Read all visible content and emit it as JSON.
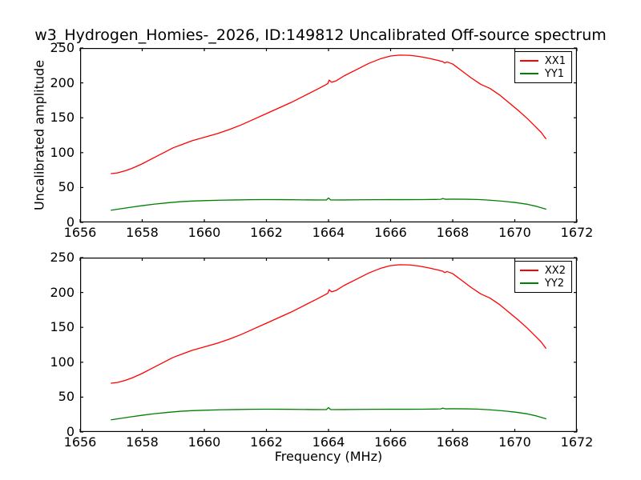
{
  "title": "w3_Hydrogen_Homies-_2026, ID:149812 Uncalibrated Off-source spectrum",
  "colors": {
    "xx_line": "#ff0000",
    "yy_line": "#008000",
    "frame": "#000000",
    "background": "#ffffff"
  },
  "chart_data": [
    {
      "type": "line",
      "title": "",
      "xlabel": "",
      "ylabel": "Uncalibrated amplitude",
      "xlim": [
        1656,
        1672
      ],
      "ylim": [
        0,
        250
      ],
      "xticks": [
        1656,
        1658,
        1660,
        1662,
        1664,
        1666,
        1668,
        1670,
        1672
      ],
      "yticks": [
        0,
        50,
        100,
        150,
        200,
        250
      ],
      "grid": false,
      "legend_position": "upper right",
      "legend": [
        "XX1",
        "YY1"
      ],
      "series": [
        {
          "name": "XX1",
          "color": "#ff0000",
          "points": [
            [
              1657.0,
              70
            ],
            [
              1657.2,
              71
            ],
            [
              1657.45,
              74
            ],
            [
              1657.7,
              78
            ],
            [
              1658.0,
              84
            ],
            [
              1658.3,
              91
            ],
            [
              1658.65,
              99
            ],
            [
              1659.0,
              107
            ],
            [
              1659.3,
              112
            ],
            [
              1659.6,
              117
            ],
            [
              1660.0,
              122
            ],
            [
              1660.4,
              127
            ],
            [
              1660.8,
              133
            ],
            [
              1661.2,
              140
            ],
            [
              1661.6,
              148
            ],
            [
              1662.0,
              156
            ],
            [
              1662.4,
              164
            ],
            [
              1662.8,
              172
            ],
            [
              1663.2,
              181
            ],
            [
              1663.6,
              190
            ],
            [
              1663.9,
              197
            ],
            [
              1663.98,
              199
            ],
            [
              1664.02,
              204
            ],
            [
              1664.1,
              201
            ],
            [
              1664.25,
              203
            ],
            [
              1664.5,
              210
            ],
            [
              1664.9,
              219
            ],
            [
              1665.3,
              228
            ],
            [
              1665.7,
              235
            ],
            [
              1666.0,
              238.5
            ],
            [
              1666.3,
              239.8
            ],
            [
              1666.6,
              239.5
            ],
            [
              1666.9,
              238
            ],
            [
              1667.2,
              235.5
            ],
            [
              1667.5,
              232.5
            ],
            [
              1667.68,
              230.5
            ],
            [
              1667.74,
              228.5
            ],
            [
              1667.82,
              230
            ],
            [
              1668.0,
              227
            ],
            [
              1668.3,
              217
            ],
            [
              1668.6,
              207
            ],
            [
              1668.9,
              198
            ],
            [
              1669.2,
              192
            ],
            [
              1669.5,
              183
            ],
            [
              1669.8,
              172
            ],
            [
              1670.1,
              161
            ],
            [
              1670.4,
              149
            ],
            [
              1670.65,
              138
            ],
            [
              1670.85,
              129
            ],
            [
              1671.0,
              120
            ]
          ]
        },
        {
          "name": "YY1",
          "color": "#008000",
          "points": [
            [
              1657.0,
              17.5
            ],
            [
              1657.3,
              19.5
            ],
            [
              1657.6,
              21.5
            ],
            [
              1658.0,
              24
            ],
            [
              1658.4,
              26.2
            ],
            [
              1658.8,
              28
            ],
            [
              1659.2,
              29.6
            ],
            [
              1659.6,
              30.6
            ],
            [
              1660.0,
              31.2
            ],
            [
              1660.5,
              31.8
            ],
            [
              1661.0,
              32.2
            ],
            [
              1661.5,
              32.5
            ],
            [
              1662.0,
              32.7
            ],
            [
              1662.5,
              32.6
            ],
            [
              1663.0,
              32.4
            ],
            [
              1663.5,
              32.2
            ],
            [
              1663.93,
              32.1
            ],
            [
              1664.0,
              35
            ],
            [
              1664.07,
              32.1
            ],
            [
              1664.5,
              32.2
            ],
            [
              1665.0,
              32.4
            ],
            [
              1665.5,
              32.5
            ],
            [
              1666.0,
              32.6
            ],
            [
              1666.5,
              32.6
            ],
            [
              1667.0,
              32.7
            ],
            [
              1667.4,
              32.9
            ],
            [
              1667.62,
              33.1
            ],
            [
              1667.68,
              34.3
            ],
            [
              1667.76,
              33.2
            ],
            [
              1668.0,
              33.3
            ],
            [
              1668.4,
              33.2
            ],
            [
              1668.8,
              32.8
            ],
            [
              1669.2,
              31.8
            ],
            [
              1669.6,
              30.4
            ],
            [
              1670.0,
              28.6
            ],
            [
              1670.4,
              26
            ],
            [
              1670.7,
              23
            ],
            [
              1671.0,
              19
            ]
          ]
        }
      ]
    },
    {
      "type": "line",
      "title": "",
      "xlabel": "Frequency (MHz)",
      "ylabel": "",
      "xlim": [
        1656,
        1672
      ],
      "ylim": [
        0,
        250
      ],
      "xticks": [
        1656,
        1658,
        1660,
        1662,
        1664,
        1666,
        1668,
        1670,
        1672
      ],
      "yticks": [
        0,
        50,
        100,
        150,
        200,
        250
      ],
      "grid": false,
      "legend_position": "upper right",
      "legend": [
        "XX2",
        "YY2"
      ],
      "series": [
        {
          "name": "XX2",
          "color": "#ff0000",
          "points": [
            [
              1657.0,
              70
            ],
            [
              1657.2,
              71
            ],
            [
              1657.45,
              74
            ],
            [
              1657.7,
              78
            ],
            [
              1658.0,
              84
            ],
            [
              1658.3,
              91
            ],
            [
              1658.65,
              99
            ],
            [
              1659.0,
              107
            ],
            [
              1659.3,
              112
            ],
            [
              1659.6,
              117
            ],
            [
              1660.0,
              122
            ],
            [
              1660.4,
              127
            ],
            [
              1660.8,
              133
            ],
            [
              1661.2,
              140
            ],
            [
              1661.6,
              148
            ],
            [
              1662.0,
              156
            ],
            [
              1662.4,
              164
            ],
            [
              1662.8,
              172
            ],
            [
              1663.2,
              181
            ],
            [
              1663.6,
              190
            ],
            [
              1663.9,
              197
            ],
            [
              1663.98,
              199
            ],
            [
              1664.02,
              204
            ],
            [
              1664.1,
              201
            ],
            [
              1664.25,
              203
            ],
            [
              1664.5,
              210
            ],
            [
              1664.9,
              219
            ],
            [
              1665.3,
              228
            ],
            [
              1665.7,
              235
            ],
            [
              1666.0,
              238.5
            ],
            [
              1666.3,
              239.8
            ],
            [
              1666.6,
              239.5
            ],
            [
              1666.9,
              238
            ],
            [
              1667.2,
              235.5
            ],
            [
              1667.5,
              232.5
            ],
            [
              1667.68,
              230.5
            ],
            [
              1667.74,
              228.5
            ],
            [
              1667.82,
              230
            ],
            [
              1668.0,
              227
            ],
            [
              1668.3,
              217
            ],
            [
              1668.6,
              207
            ],
            [
              1668.9,
              198
            ],
            [
              1669.2,
              192
            ],
            [
              1669.5,
              183
            ],
            [
              1669.8,
              172
            ],
            [
              1670.1,
              161
            ],
            [
              1670.4,
              149
            ],
            [
              1670.65,
              138
            ],
            [
              1670.85,
              129
            ],
            [
              1671.0,
              120
            ]
          ]
        },
        {
          "name": "YY2",
          "color": "#008000",
          "points": [
            [
              1657.0,
              17.5
            ],
            [
              1657.3,
              19.5
            ],
            [
              1657.6,
              21.5
            ],
            [
              1658.0,
              24
            ],
            [
              1658.4,
              26.2
            ],
            [
              1658.8,
              28
            ],
            [
              1659.2,
              29.6
            ],
            [
              1659.6,
              30.6
            ],
            [
              1660.0,
              31.2
            ],
            [
              1660.5,
              31.8
            ],
            [
              1661.0,
              32.2
            ],
            [
              1661.5,
              32.5
            ],
            [
              1662.0,
              32.7
            ],
            [
              1662.5,
              32.6
            ],
            [
              1663.0,
              32.4
            ],
            [
              1663.5,
              32.2
            ],
            [
              1663.93,
              32.1
            ],
            [
              1664.0,
              35
            ],
            [
              1664.07,
              32.1
            ],
            [
              1664.5,
              32.2
            ],
            [
              1665.0,
              32.4
            ],
            [
              1665.5,
              32.5
            ],
            [
              1666.0,
              32.6
            ],
            [
              1666.5,
              32.6
            ],
            [
              1667.0,
              32.7
            ],
            [
              1667.4,
              32.9
            ],
            [
              1667.62,
              33.1
            ],
            [
              1667.68,
              34.3
            ],
            [
              1667.76,
              33.2
            ],
            [
              1668.0,
              33.3
            ],
            [
              1668.4,
              33.2
            ],
            [
              1668.8,
              32.8
            ],
            [
              1669.2,
              31.8
            ],
            [
              1669.6,
              30.4
            ],
            [
              1670.0,
              28.6
            ],
            [
              1670.4,
              26
            ],
            [
              1670.7,
              23
            ],
            [
              1671.0,
              19
            ]
          ]
        }
      ]
    }
  ]
}
